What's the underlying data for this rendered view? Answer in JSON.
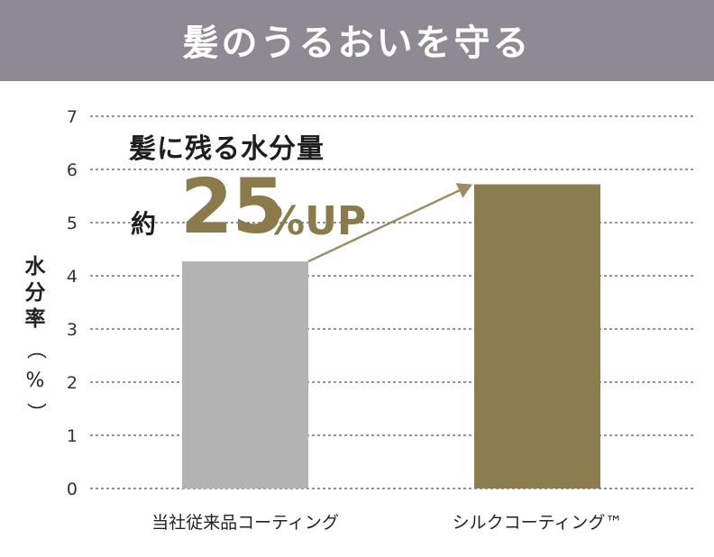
{
  "banner": {
    "title": "髪のうるおいを守る"
  },
  "annotation": {
    "title": "髪に残る水分量",
    "prefix": "約",
    "value": "25",
    "suffix": "%UP"
  },
  "colors": {
    "banner_bg": "#8e8a93",
    "bar_conventional": "#b3b3b3",
    "bar_silk": "#8b7d4e",
    "accent_text": "#8a7a4c",
    "arrow": "#9b8a63",
    "grid": "#555555"
  },
  "chart_data": {
    "type": "bar",
    "categories": [
      "当社従来品コーティング",
      "シルクコーティング™"
    ],
    "values": [
      4.27,
      5.72
    ],
    "title": "",
    "xlabel": "",
    "ylabel": "水分率（%）",
    "ylim": [
      0,
      7
    ],
    "yticks": [
      0,
      1,
      2,
      3,
      4,
      5,
      6,
      7
    ],
    "grid": true,
    "gridStyle": "dashed-horizontal",
    "legend": "none"
  }
}
